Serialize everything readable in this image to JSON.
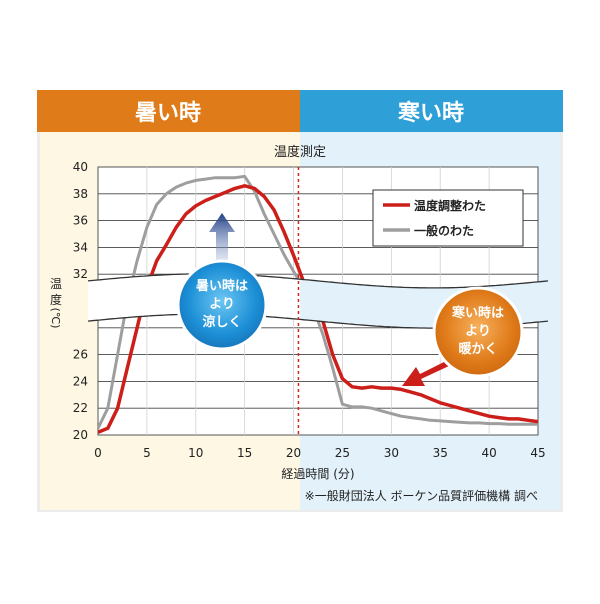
{
  "header": {
    "hot_label": "暑い時",
    "cold_label": "寒い時",
    "hot_color": "#e07b1a",
    "cold_color": "#2f9fd8"
  },
  "chart_data": {
    "type": "line",
    "title": "温度測定",
    "xlabel": "経過時間 (分)",
    "ylabel": "温度 (℃)",
    "xlim": [
      0,
      45
    ],
    "ylim": [
      20,
      40
    ],
    "x_ticks": [
      0,
      5,
      10,
      15,
      20,
      25,
      30,
      35,
      40,
      45
    ],
    "y_ticks": [
      20,
      22,
      24,
      26,
      28,
      30,
      32,
      34,
      36,
      38,
      40
    ],
    "y_tick_labels": [
      "20",
      "22",
      "24",
      "26",
      "",
      "",
      "32",
      "34",
      "36",
      "38",
      "40"
    ],
    "axis_break": [
      28.5,
      31.5
    ],
    "divider_x": 20.5,
    "grid": true,
    "legend_position": "top-right",
    "series": [
      {
        "name": "温度調整わた",
        "color": "#cc1f1a",
        "points": [
          [
            0,
            20.2
          ],
          [
            1,
            20.5
          ],
          [
            2,
            22
          ],
          [
            3,
            25
          ],
          [
            4,
            28
          ],
          [
            5,
            31
          ],
          [
            6,
            33
          ],
          [
            7,
            34.2
          ],
          [
            8,
            35.5
          ],
          [
            9,
            36.5
          ],
          [
            10,
            37.1
          ],
          [
            11,
            37.5
          ],
          [
            12,
            37.8
          ],
          [
            13,
            38.1
          ],
          [
            14,
            38.4
          ],
          [
            15,
            38.6
          ],
          [
            16,
            38.4
          ],
          [
            17,
            37.8
          ],
          [
            18,
            36.8
          ],
          [
            19,
            35.2
          ],
          [
            20,
            33.4
          ],
          [
            21,
            31.5
          ],
          [
            22,
            30
          ],
          [
            23,
            28.5
          ],
          [
            24,
            26
          ],
          [
            25,
            24.2
          ],
          [
            26,
            23.6
          ],
          [
            27,
            23.5
          ],
          [
            28,
            23.6
          ],
          [
            29,
            23.5
          ],
          [
            30,
            23.5
          ],
          [
            31,
            23.4
          ],
          [
            32,
            23.2
          ],
          [
            33,
            23
          ],
          [
            34,
            22.7
          ],
          [
            35,
            22.4
          ],
          [
            36,
            22.2
          ],
          [
            37,
            22
          ],
          [
            38,
            21.8
          ],
          [
            39,
            21.6
          ],
          [
            40,
            21.4
          ],
          [
            41,
            21.3
          ],
          [
            42,
            21.2
          ],
          [
            43,
            21.2
          ],
          [
            44,
            21.1
          ],
          [
            45,
            21.0
          ]
        ]
      },
      {
        "name": "一般のわた",
        "color": "#9e9e9e",
        "points": [
          [
            0,
            20.5
          ],
          [
            1,
            22
          ],
          [
            2,
            26
          ],
          [
            3,
            30
          ],
          [
            4,
            33
          ],
          [
            5,
            35.5
          ],
          [
            6,
            37.2
          ],
          [
            7,
            38
          ],
          [
            8,
            38.5
          ],
          [
            9,
            38.8
          ],
          [
            10,
            39
          ],
          [
            11,
            39.1
          ],
          [
            12,
            39.2
          ],
          [
            13,
            39.2
          ],
          [
            14,
            39.2
          ],
          [
            15,
            39.3
          ],
          [
            16,
            38.2
          ],
          [
            17,
            36.5
          ],
          [
            18,
            35
          ],
          [
            19,
            33.5
          ],
          [
            20,
            32.2
          ],
          [
            21,
            31
          ],
          [
            22,
            29.5
          ],
          [
            23,
            27.5
          ],
          [
            24,
            25
          ],
          [
            25,
            22.3
          ],
          [
            26,
            22.1
          ],
          [
            27,
            22.1
          ],
          [
            28,
            22
          ],
          [
            29,
            21.8
          ],
          [
            30,
            21.6
          ],
          [
            31,
            21.4
          ],
          [
            32,
            21.3
          ],
          [
            33,
            21.2
          ],
          [
            34,
            21.1
          ],
          [
            35,
            21.05
          ],
          [
            36,
            21
          ],
          [
            37,
            20.95
          ],
          [
            38,
            20.9
          ],
          [
            39,
            20.9
          ],
          [
            40,
            20.85
          ],
          [
            41,
            20.85
          ],
          [
            42,
            20.8
          ],
          [
            43,
            20.8
          ],
          [
            44,
            20.8
          ],
          [
            45,
            20.8
          ]
        ]
      }
    ],
    "annotations": {
      "hot_bubble": [
        "暑い時は",
        "より",
        "涼しく"
      ],
      "cold_bubble": [
        "寒い時は",
        "より",
        "暖かく"
      ]
    },
    "source_note": "※一般財団法人 ボーケン品質評価機構 調べ"
  },
  "colors": {
    "hot_panel_bg": "#fdf7e3",
    "cold_panel_bg": "#e2f1fa",
    "frame_bg": "#ececec",
    "hot_bubble": "#1c8fd6",
    "cold_bubble": "#e07b1a",
    "arrow_blue": "#1f3f86",
    "arrow_red": "#cc1f1a",
    "divider": "#d6261f"
  }
}
